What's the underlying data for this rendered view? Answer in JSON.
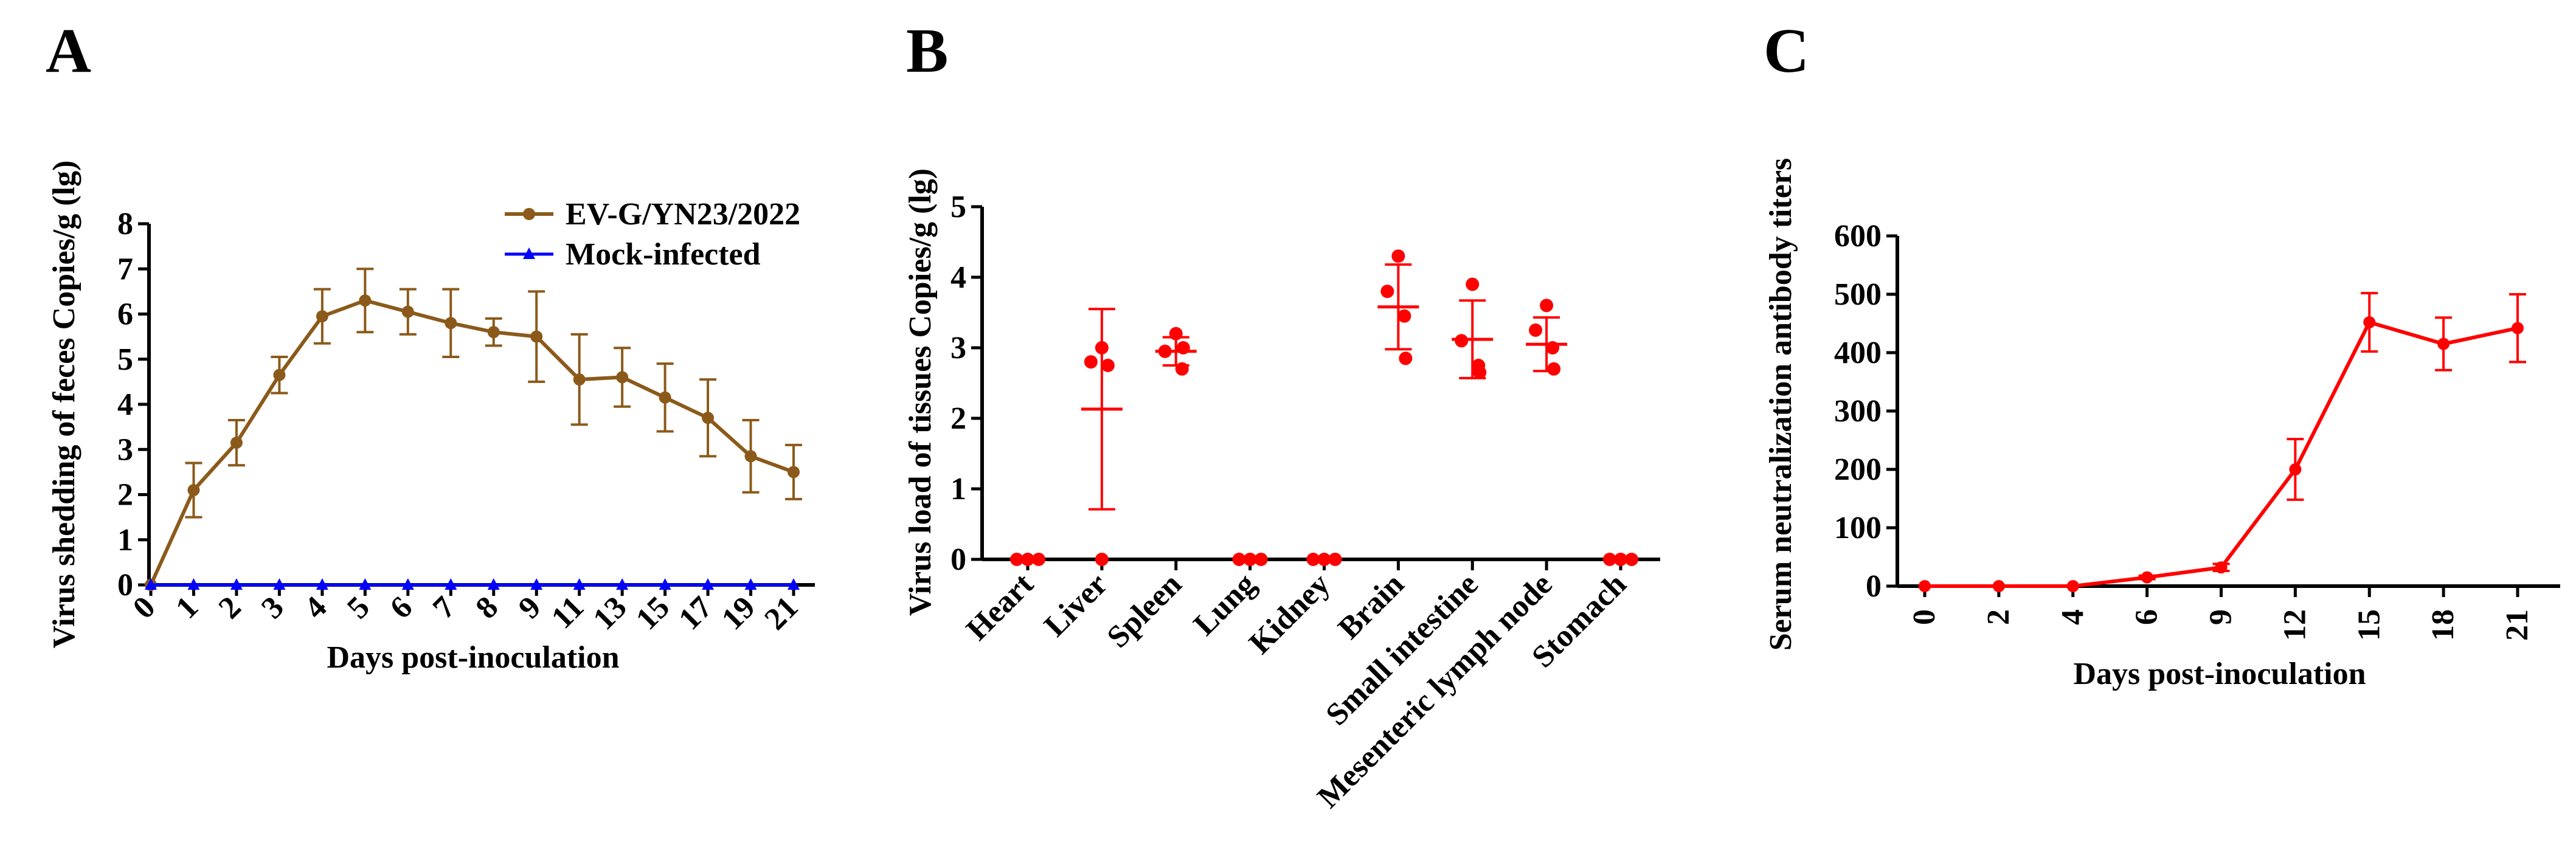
{
  "chart_data": [
    {
      "panel": "A",
      "type": "line",
      "xlabel": "Days post-inoculation",
      "ylabel": "Virus shedding of feces  Copies/g (lg)",
      "categories": [
        "0",
        "1",
        "2",
        "3",
        "4",
        "5",
        "6",
        "7",
        "8",
        "9",
        "11",
        "13",
        "15",
        "17",
        "19",
        "21"
      ],
      "yticks": [
        "0",
        "1",
        "2",
        "3",
        "4",
        "5",
        "6",
        "7",
        "8"
      ],
      "ylim": [
        0,
        8
      ],
      "legend_position": "top-right",
      "series": [
        {
          "name": "EV-G/YN23/2022",
          "color": "#8B5A1A",
          "marker": "circle",
          "values": [
            0,
            2.1,
            3.15,
            4.65,
            5.95,
            6.3,
            6.05,
            5.8,
            5.6,
            5.5,
            4.55,
            4.6,
            4.15,
            3.7,
            2.85,
            2.5
          ],
          "errors": [
            0,
            0.6,
            0.5,
            0.4,
            0.6,
            0.7,
            0.5,
            0.75,
            0.3,
            1.0,
            1.0,
            0.65,
            0.75,
            0.85,
            0.8,
            0.6
          ]
        },
        {
          "name": "Mock-infected",
          "color": "#0000FF",
          "marker": "triangle",
          "values": [
            0,
            0,
            0,
            0,
            0,
            0,
            0,
            0,
            0,
            0,
            0,
            0,
            0,
            0,
            0,
            0
          ]
        }
      ]
    },
    {
      "panel": "B",
      "type": "scatter",
      "xlabel": "",
      "ylabel": "Virus load of tissues Copies/g (lg)",
      "categories": [
        "Heart",
        "Liver",
        "Spleen",
        "Lung",
        "Kidney",
        "Brain",
        "Small intestine",
        "Mesenteric lymph node",
        "Stomach"
      ],
      "yticks": [
        "0",
        "1",
        "2",
        "3",
        "4",
        "5"
      ],
      "ylim": [
        0,
        5
      ],
      "color": "#FF0000",
      "groups": [
        {
          "points": [
            0,
            0,
            0
          ],
          "mean": null,
          "sd": null
        },
        {
          "points": [
            3.0,
            2.8,
            2.75,
            0
          ],
          "mean": 2.13,
          "sd": 1.42
        },
        {
          "points": [
            3.2,
            2.95,
            2.7,
            3.0
          ],
          "mean": 2.95,
          "sd": 0.2
        },
        {
          "points": [
            0,
            0,
            0
          ],
          "mean": null,
          "sd": null
        },
        {
          "points": [
            0,
            0,
            0
          ],
          "mean": null,
          "sd": null
        },
        {
          "points": [
            4.3,
            3.8,
            3.45,
            2.85
          ],
          "mean": 3.58,
          "sd": 0.6
        },
        {
          "points": [
            3.9,
            3.1,
            2.75,
            2.65
          ],
          "mean": 3.12,
          "sd": 0.55
        },
        {
          "points": [
            3.6,
            3.25,
            3.0,
            2.7
          ],
          "mean": 3.05,
          "sd": 0.38
        },
        {
          "points": [
            0,
            0,
            0
          ],
          "mean": null,
          "sd": null
        }
      ]
    },
    {
      "panel": "C",
      "type": "line",
      "xlabel": "Days post-inoculation",
      "ylabel": "Serum neutralization antibody titers",
      "categories": [
        "0",
        "2",
        "4",
        "6",
        "9",
        "12",
        "15",
        "18",
        "21"
      ],
      "yticks": [
        "0",
        "100",
        "200",
        "300",
        "400",
        "500",
        "600"
      ],
      "ylim": [
        0,
        600
      ],
      "series": [
        {
          "name": "Serum neutralization antibody titers",
          "color": "#FF0000",
          "marker": "circle",
          "values": [
            0,
            0,
            0,
            15,
            32,
            200,
            452,
            415,
            442
          ],
          "errors": [
            0,
            0,
            0,
            3,
            6,
            52,
            50,
            45,
            58
          ]
        }
      ]
    }
  ]
}
